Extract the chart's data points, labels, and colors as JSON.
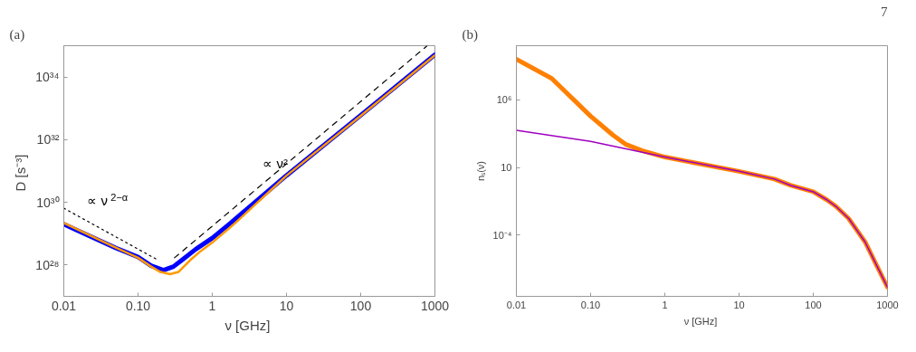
{
  "chart_data": [
    {
      "type": "line",
      "title": "(a)",
      "xlabel": "ν  [GHz]",
      "ylabel": "D  [s⁻³]",
      "log": "xy",
      "grid": false,
      "xlim": [
        0.01,
        1000
      ],
      "ylim": [
        1e+27,
        1e+35
      ],
      "xticks": [
        0.01,
        {
          "value": 0.1,
          "label": "0.10"
        },
        1,
        10,
        100,
        1000
      ],
      "yticks": [
        {
          "value": 1e+28,
          "label": "10²⁸"
        },
        {
          "value": 1e+30,
          "label": "10³⁰"
        },
        {
          "value": 1e+32,
          "label": "10³²"
        },
        {
          "value": 1e+34,
          "label": "10³⁴"
        }
      ],
      "series": [
        {
          "color": "#0000ff",
          "x": [
            0.01,
            0.05,
            0.1,
            0.15,
            0.22,
            0.3,
            0.4,
            0.6,
            1,
            2,
            10,
            100,
            1000
          ],
          "values": [
            2e+29,
            3.5e+28,
            1.8e+28,
            9.5e+27,
            6.8e+27,
            8.9e+27,
            1.5e+28,
            3.2e+28,
            7.2e+28,
            2.8e+29,
            7.2e+30,
            6e+32,
            5.2e+34
          ]
        },
        {
          "color": "#ff9900",
          "x": [
            0.01,
            0.05,
            0.1,
            0.15,
            0.2,
            0.27,
            0.35,
            0.5,
            0.7,
            1,
            2,
            10,
            100,
            1000
          ],
          "values": [
            2.2e+29,
            3.6e+28,
            1.7e+28,
            8.9e+27,
            6e+27,
            5.1e+27,
            6e+27,
            1.4e+28,
            2.8e+28,
            5.2e+28,
            2.1e+29,
            7.1e+30,
            5.8e+32,
            5e+34
          ]
        },
        {
          "color": "#000000",
          "line_style": "dotted",
          "x": [
            0.01,
            0.18
          ],
          "values": [
            6.5e+29,
            1.5e+28
          ]
        },
        {
          "color": "#000000",
          "line_style": "dashed",
          "x": [
            0.31,
            780
          ],
          "values": [
            1.7e+28,
            9.8e+34
          ]
        }
      ],
      "annotations": [
        "∝ ν$^{2−α}$",
        "∝ ν²"
      ]
    },
    {
      "type": "line",
      "title": "(b)",
      "xlabel": "ν  [GHz]",
      "ylabel": "nₛ(ν)",
      "log": "xy",
      "grid": false,
      "xlim": [
        0.01,
        1000
      ],
      "ylim": [
        3e-09,
        10000000000.0
      ],
      "xticks": [
        0.01,
        {
          "value": 0.1,
          "label": "0.10"
        },
        1,
        10,
        100,
        1000
      ],
      "yticks": [
        {
          "value": 0.0001,
          "label": "10⁻⁴"
        },
        10,
        {
          "value": 1000000.0,
          "label": "10⁶"
        }
      ],
      "series": [
        {
          "color": "#ff8000",
          "x": [
            0.01,
            0.03,
            0.1,
            0.2,
            0.3,
            0.5,
            1,
            10,
            30,
            50,
            100,
            150,
            200,
            300,
            500,
            700,
            1000
          ],
          "values": [
            1000000000.0,
            38000000.0,
            62000.0,
            2500.0,
            500,
            170,
            59,
            5.2,
            1.4,
            0.47,
            0.16,
            0.043,
            0.014,
            0.0017,
            3.1e-05,
            7.2e-07,
            1.4e-08
          ]
        },
        {
          "color": "#a000c0",
          "x": [
            0.01,
            0.1,
            1,
            10,
            30,
            50,
            100,
            150,
            200,
            300,
            500,
            700,
            1000
          ],
          "values": [
            5500.0,
            850,
            59,
            5.2,
            1.4,
            0.47,
            0.16,
            0.043,
            0.014,
            0.0017,
            3.1e-05,
            7.2e-07,
            1.4e-08
          ]
        }
      ],
      "annotations": [
        "7"
      ]
    }
  ]
}
